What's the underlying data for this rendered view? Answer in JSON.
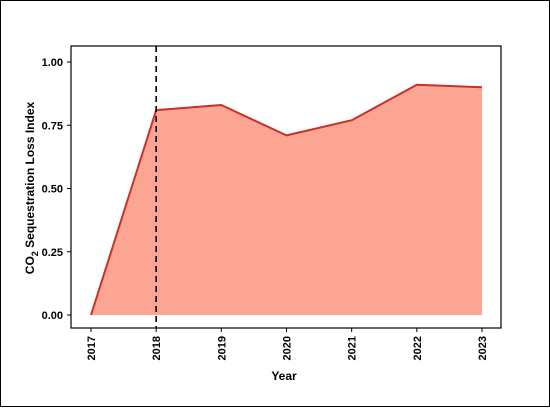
{
  "chart_data": {
    "type": "area",
    "x": [
      "2017",
      "2018",
      "2019",
      "2020",
      "2021",
      "2022",
      "2023"
    ],
    "values": [
      0.0,
      0.81,
      0.83,
      0.71,
      0.77,
      0.91,
      0.9
    ],
    "title": "",
    "xlabel": "Year",
    "ylabel": "CO",
    "ylabel_subscript": "2",
    "ylabel_rest": " Sequestration Loss Index",
    "ylim": [
      0.0,
      1.0
    ],
    "yticks": [
      "0.00",
      "0.25",
      "0.50",
      "0.75",
      "1.00"
    ],
    "ytick_values": [
      0,
      0.25,
      0.5,
      0.75,
      1.0
    ],
    "vline_x": "2018",
    "fill_color": "#fba592",
    "line_color": "#c8302a",
    "grid": false
  }
}
